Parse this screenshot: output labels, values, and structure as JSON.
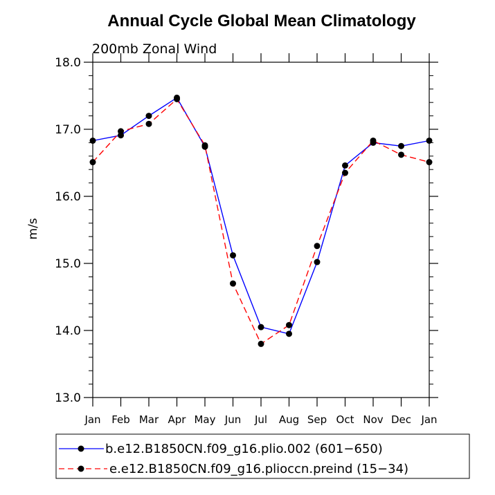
{
  "chart_data": {
    "type": "line",
    "title": "Annual Cycle Global Mean Climatology",
    "subtitle": "200mb Zonal Wind",
    "ylabel": "m/s",
    "xlabel": "",
    "categories": [
      "Jan",
      "Feb",
      "Mar",
      "Apr",
      "May",
      "Jun",
      "Jul",
      "Aug",
      "Sep",
      "Oct",
      "Nov",
      "Dec",
      "Jan"
    ],
    "ylim": [
      13.0,
      18.0
    ],
    "yticks": [
      "13.0",
      "14.0",
      "15.0",
      "16.0",
      "17.0",
      "18.0"
    ],
    "legend_position": "bottom",
    "series": [
      {
        "name": "b.e12.B1850CN.f09_g16.plio.002 (601−650)",
        "color": "#0000ff",
        "dash": "solid",
        "values": [
          16.83,
          16.91,
          17.2,
          17.47,
          16.74,
          15.12,
          14.05,
          13.95,
          15.02,
          16.46,
          16.8,
          16.75,
          16.83
        ]
      },
      {
        "name": "e.e12.B1850CN.f09_g16.plioccn.preind (15−34)",
        "color": "#ff0000",
        "dash": "dashed",
        "values": [
          16.51,
          16.97,
          17.08,
          17.45,
          16.76,
          14.7,
          13.8,
          14.08,
          15.26,
          16.35,
          16.83,
          16.62,
          16.51
        ]
      }
    ]
  }
}
